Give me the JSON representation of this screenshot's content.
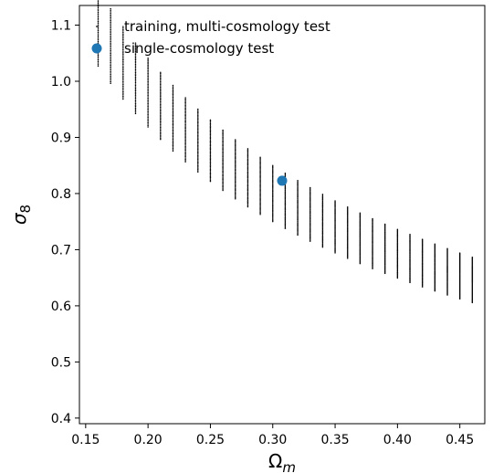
{
  "chart_data": {
    "type": "scatter",
    "xlabel": "Ω",
    "xlabel_sub": "m",
    "ylabel": "σ",
    "ylabel_sub": "8",
    "xlim": [
      0.145,
      0.47
    ],
    "ylim": [
      0.39,
      1.135
    ],
    "x_ticks": [
      0.15,
      0.2,
      0.25,
      0.3,
      0.35,
      0.4,
      0.45
    ],
    "x_tick_labels": [
      "0.15",
      "0.20",
      "0.25",
      "0.30",
      "0.35",
      "0.40",
      "0.45"
    ],
    "y_ticks": [
      0.4,
      0.5,
      0.6,
      0.7,
      0.8,
      0.9,
      1.0,
      1.1
    ],
    "y_tick_labels": [
      "0.4",
      "0.5",
      "0.6",
      "0.7",
      "0.8",
      "0.9",
      "1.0",
      "1.1"
    ],
    "legend_position": "top-left",
    "series": [
      {
        "name": "training, multi-cosmology test",
        "color": "#000000",
        "marker": "small-dot",
        "generation": {
          "omega_m_start": 0.16,
          "omega_m_stop": 0.46,
          "omega_m_step": 0.01,
          "s8_min": 0.75,
          "s8_max": 0.85,
          "s8_step": 0.002
        }
      },
      {
        "name": "single-cosmology test",
        "color": "#1f77b4",
        "marker": "large-dot",
        "points": [
          [
            0.3075,
            0.8228
          ]
        ]
      }
    ]
  }
}
